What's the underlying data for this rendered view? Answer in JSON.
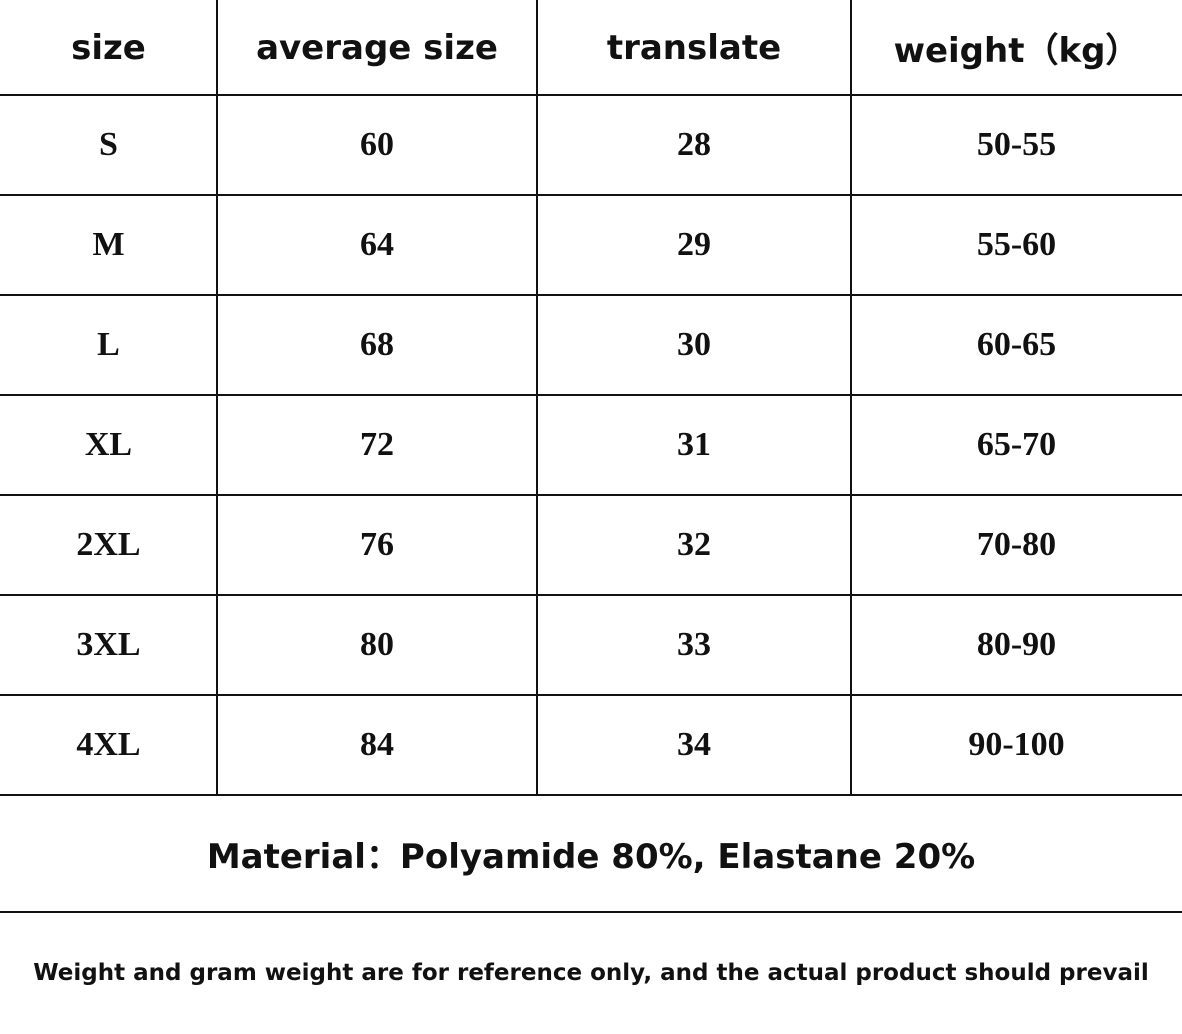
{
  "table": {
    "header": [
      "size",
      "average size",
      "translate",
      "weight（kg）"
    ],
    "rows": [
      [
        "S",
        "60",
        "28",
        "50-55"
      ],
      [
        "M",
        "64",
        "29",
        "55-60"
      ],
      [
        "L",
        "68",
        "30",
        "60-65"
      ],
      [
        "XL",
        "72",
        "31",
        "65-70"
      ],
      [
        "2XL",
        "76",
        "32",
        "70-80"
      ],
      [
        "3XL",
        "80",
        "33",
        "80-90"
      ],
      [
        "4XL",
        "84",
        "34",
        "90-100"
      ]
    ]
  },
  "material": "Material：Polyamide 80%, Elastane 20%",
  "note": "Weight and gram weight are for reference only, and the actual product should prevail"
}
